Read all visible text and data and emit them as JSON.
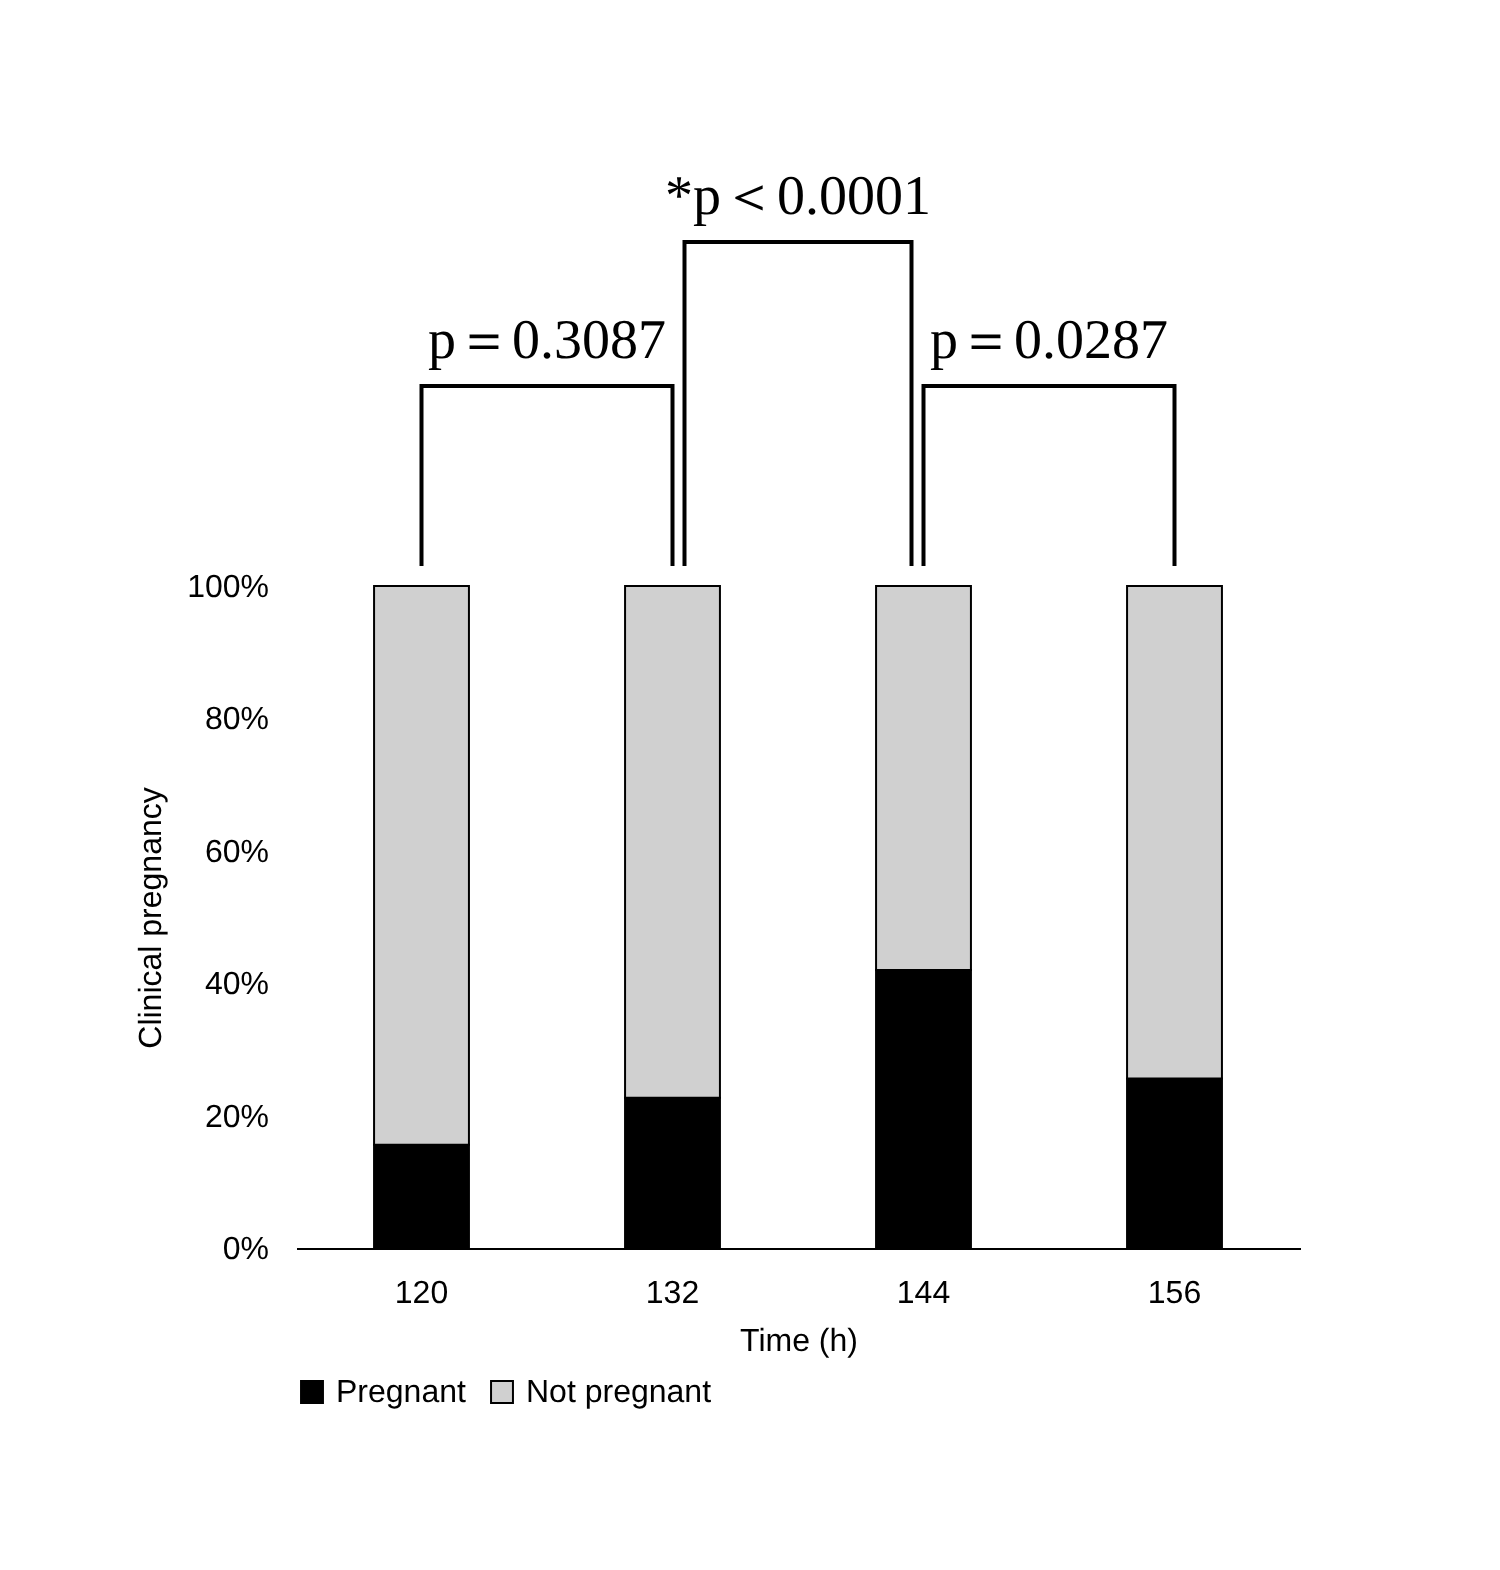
{
  "chart_data": {
    "type": "bar",
    "stacked": true,
    "xlabel": "Time (h)",
    "ylabel": "Clinical pregnancy",
    "categories": [
      "120",
      "132",
      "144",
      "156"
    ],
    "series": [
      {
        "name": "Pregnant",
        "color": "#000000",
        "values": [
          15.6,
          22.7,
          42.0,
          25.6
        ]
      },
      {
        "name": "Not pregnant",
        "color": "#d0d0d0",
        "values": [
          84.4,
          77.3,
          58.0,
          74.4
        ]
      }
    ],
    "ylim": [
      0,
      100
    ],
    "yticks": [
      {
        "value": 0,
        "label": "0%"
      },
      {
        "value": 20,
        "label": "20%"
      },
      {
        "value": 40,
        "label": "40%"
      },
      {
        "value": 60,
        "label": "60%"
      },
      {
        "value": 80,
        "label": "80%"
      },
      {
        "value": 100,
        "label": "100%"
      }
    ],
    "annotations": [
      "p＝0.3087",
      "*p＜0.0001",
      "p＝0.0287"
    ],
    "legend": "bottom",
    "grid": false
  }
}
